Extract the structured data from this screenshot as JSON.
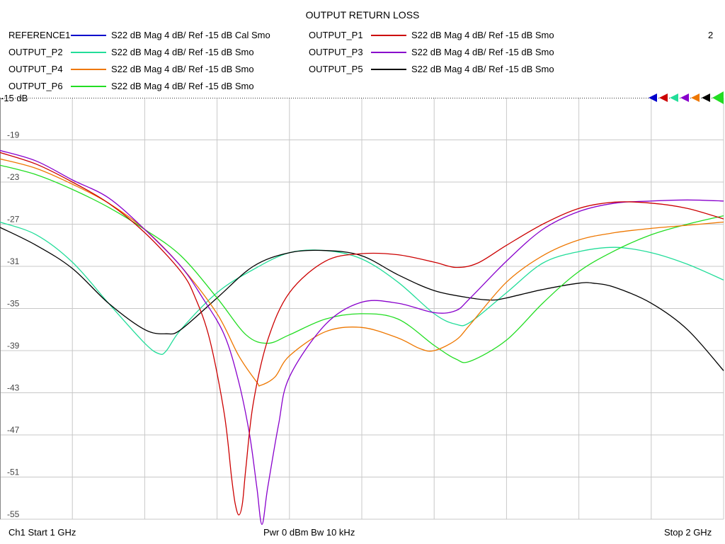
{
  "title": "OUTPUT RETURN LOSS",
  "channel_number": "2",
  "legend": [
    {
      "name": "REFERENCE1",
      "desc": "S22  dB Mag  4 dB/ Ref -15 dB  Cal Smo",
      "color": "#0000cc"
    },
    {
      "name": "OUTPUT_P1",
      "desc": "S22  dB Mag  4 dB/ Ref -15 dB  Smo",
      "color": "#cc0000"
    },
    {
      "name": "OUTPUT_P2",
      "desc": "S22  dB Mag  4 dB/ Ref -15 dB  Smo",
      "color": "#22dd99"
    },
    {
      "name": "OUTPUT_P3",
      "desc": "S22  dB Mag  4 dB/ Ref -15 dB  Smo",
      "color": "#8800cc"
    },
    {
      "name": "OUTPUT_P4",
      "desc": "S22  dB Mag  4 dB/ Ref -15 dB  Smo",
      "color": "#ee7700"
    },
    {
      "name": "OUTPUT_P5",
      "desc": "S22  dB Mag  4 dB/ Ref -15 dB  Smo",
      "color": "#000000"
    },
    {
      "name": "OUTPUT_P6",
      "desc": "S22  dB Mag  4 dB/ Ref -15 dB  Smo",
      "color": "#22dd22"
    }
  ],
  "footer": {
    "start": "Ch1  Start  1 GHz",
    "mid": "Pwr  0 dBm  Bw  10 kHz",
    "stop": "Stop  2 GHz"
  },
  "chart_data": {
    "type": "line",
    "title": "OUTPUT RETURN LOSS",
    "xlim": [
      1.0,
      2.0
    ],
    "ylim": [
      -55,
      -15
    ],
    "x_divisions": 10,
    "ref_label": "-15 dB",
    "y_ticks": [
      -19,
      -23,
      -27,
      -31,
      -35,
      -39,
      -43,
      -47,
      -51,
      -55
    ],
    "y_tick_labels": [
      "-19",
      "-23",
      "-27",
      "-31",
      "-35",
      "-39",
      "-43",
      "-47",
      "-51",
      "-55"
    ],
    "grid": true,
    "series": [
      {
        "name": "REFERENCE1",
        "color": "#0000cc",
        "x": [
          1.0
        ],
        "y": [
          -20.2
        ]
      },
      {
        "name": "OUTPUT_P1",
        "color": "#cc0000",
        "x": [
          1.0,
          0.05,
          0.1,
          0.15,
          0.2,
          0.25,
          0.27,
          0.29,
          0.31,
          0.32,
          0.325,
          0.33,
          0.335,
          0.34,
          0.35,
          0.37,
          0.4,
          0.45,
          0.5,
          0.55,
          0.6,
          0.63,
          0.66,
          0.7,
          0.75,
          0.8,
          0.85,
          0.9,
          0.95,
          1.0
        ],
        "y": [
          -20.2,
          -21.3,
          -23.0,
          -25.0,
          -27.8,
          -31.5,
          -34.0,
          -38.0,
          -45.0,
          -51.0,
          -53.5,
          -54.6,
          -53.5,
          -50.0,
          -44.0,
          -38.0,
          -33.5,
          -30.5,
          -29.8,
          -29.9,
          -30.6,
          -31.1,
          -30.7,
          -29.0,
          -27.0,
          -25.5,
          -24.9,
          -25.0,
          -25.5,
          -26.5
        ]
      },
      {
        "name": "OUTPUT_P2",
        "color": "#22dd99",
        "x": [
          1.0,
          0.05,
          0.1,
          0.15,
          0.2,
          0.22,
          0.23,
          0.25,
          0.3,
          0.35,
          0.4,
          0.45,
          0.5,
          0.55,
          0.6,
          0.63,
          0.65,
          0.7,
          0.75,
          0.8,
          0.85,
          0.9,
          0.95,
          1.0
        ],
        "y": [
          -26.8,
          -28.0,
          -30.6,
          -34.5,
          -38.3,
          -39.3,
          -39.0,
          -37.0,
          -33.5,
          -31.3,
          -29.7,
          -29.5,
          -30.3,
          -32.5,
          -35.5,
          -36.5,
          -36.3,
          -33.5,
          -30.7,
          -29.6,
          -29.2,
          -29.7,
          -30.8,
          -32.3
        ]
      },
      {
        "name": "OUTPUT_P3",
        "color": "#8800cc",
        "x": [
          1.0,
          0.05,
          0.1,
          0.15,
          0.2,
          0.25,
          0.28,
          0.31,
          0.33,
          0.345,
          0.355,
          0.362,
          0.37,
          0.385,
          0.4,
          0.45,
          0.5,
          0.55,
          0.6,
          0.63,
          0.65,
          0.7,
          0.75,
          0.8,
          0.85,
          0.9,
          0.95,
          1.0
        ],
        "y": [
          -20.0,
          -21.0,
          -22.8,
          -24.5,
          -27.5,
          -31.0,
          -34.0,
          -37.5,
          -42.0,
          -47.0,
          -52.0,
          -55.5,
          -52.0,
          -46.0,
          -41.5,
          -36.5,
          -34.4,
          -34.5,
          -35.4,
          -35.2,
          -34.0,
          -30.5,
          -27.5,
          -25.8,
          -25.0,
          -24.8,
          -24.7,
          -24.8
        ]
      },
      {
        "name": "OUTPUT_P4",
        "color": "#ee7700",
        "x": [
          1.0,
          0.05,
          0.1,
          0.15,
          0.2,
          0.25,
          0.3,
          0.33,
          0.355,
          0.36,
          0.38,
          0.4,
          0.45,
          0.5,
          0.55,
          0.58,
          0.6,
          0.63,
          0.65,
          0.7,
          0.75,
          0.8,
          0.85,
          0.9,
          0.95,
          1.0
        ],
        "y": [
          -20.8,
          -21.7,
          -23.2,
          -25.0,
          -27.5,
          -31.0,
          -35.5,
          -39.5,
          -42.0,
          -42.3,
          -41.5,
          -39.5,
          -37.2,
          -36.8,
          -37.8,
          -38.8,
          -39.0,
          -38.0,
          -36.5,
          -32.5,
          -30.0,
          -28.5,
          -27.8,
          -27.4,
          -27.1,
          -26.8
        ]
      },
      {
        "name": "OUTPUT_P5",
        "color": "#000000",
        "x": [
          1.0,
          0.05,
          0.1,
          0.15,
          0.2,
          0.23,
          0.25,
          0.3,
          0.35,
          0.4,
          0.45,
          0.5,
          0.55,
          0.6,
          0.65,
          0.68,
          0.7,
          0.75,
          0.8,
          0.82,
          0.85,
          0.9,
          0.95,
          1.0
        ],
        "y": [
          -27.3,
          -29.0,
          -31.2,
          -34.5,
          -37.0,
          -37.4,
          -37.0,
          -34.0,
          -31.0,
          -29.7,
          -29.5,
          -30.0,
          -31.8,
          -33.3,
          -34.0,
          -34.2,
          -34.0,
          -33.2,
          -32.6,
          -32.6,
          -33.0,
          -34.5,
          -37.0,
          -40.9
        ]
      },
      {
        "name": "OUTPUT_P6",
        "color": "#22dd22",
        "x": [
          1.0,
          0.05,
          0.1,
          0.15,
          0.2,
          0.25,
          0.3,
          0.34,
          0.37,
          0.4,
          0.45,
          0.5,
          0.55,
          0.6,
          0.63,
          0.65,
          0.7,
          0.75,
          0.8,
          0.85,
          0.9,
          0.95,
          1.0
        ],
        "y": [
          -21.4,
          -22.3,
          -23.7,
          -25.4,
          -27.5,
          -30.0,
          -34.0,
          -37.5,
          -38.3,
          -37.5,
          -36.0,
          -35.5,
          -36.0,
          -38.5,
          -39.8,
          -40.0,
          -38.0,
          -34.5,
          -31.5,
          -29.5,
          -28.0,
          -27.0,
          -26.2
        ]
      }
    ]
  }
}
